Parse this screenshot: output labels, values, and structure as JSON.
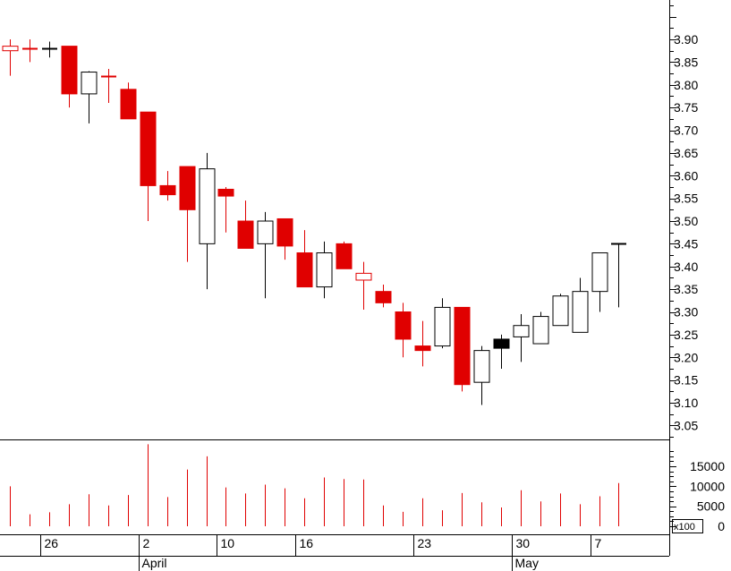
{
  "colors": {
    "up_body": "#ffffff",
    "up_outline": "#000000",
    "down_body": "#e00000",
    "special_body": "#000000",
    "volume_bar": "#e00000",
    "axis": "#000000",
    "background": "#ffffff"
  },
  "chart_data": {
    "type": "candlestick",
    "price_axis": {
      "ylim": [
        3.0,
        4.0
      ],
      "ticks": [
        "3.05",
        "3.10",
        "3.15",
        "3.20",
        "3.25",
        "3.30",
        "3.35",
        "3.40",
        "3.45",
        "3.50",
        "3.55",
        "3.60",
        "3.65",
        "3.70",
        "3.75",
        "3.80",
        "3.85",
        "3.90"
      ],
      "position": "right"
    },
    "volume_axis": {
      "ylim": [
        0,
        200
      ],
      "ticks": [
        "0",
        "5000",
        "10000",
        "15000"
      ],
      "multiplier_label": "x100"
    },
    "date_ticks": [
      "26",
      "2",
      "10",
      "16",
      "23",
      "30",
      "7"
    ],
    "month_labels": [
      "April",
      "May"
    ],
    "candles": [
      {
        "open": 3.885,
        "high": 3.9,
        "low": 3.82,
        "close": 3.875,
        "volume": 100,
        "kind": "down_hollow"
      },
      {
        "open": 3.88,
        "high": 3.9,
        "low": 3.85,
        "close": 3.88,
        "volume": 30,
        "kind": "doji_red"
      },
      {
        "open": 3.88,
        "high": 3.895,
        "low": 3.86,
        "close": 3.88,
        "volume": 35,
        "kind": "doji_black"
      },
      {
        "open": 3.885,
        "high": 3.885,
        "low": 3.75,
        "close": 3.78,
        "volume": 55,
        "kind": "down"
      },
      {
        "open": 3.78,
        "high": 3.83,
        "low": 3.715,
        "close": 3.828,
        "volume": 80,
        "kind": "up"
      },
      {
        "open": 3.825,
        "high": 3.835,
        "low": 3.76,
        "close": 3.82,
        "volume": 52,
        "kind": "doji_red"
      },
      {
        "open": 3.79,
        "high": 3.805,
        "low": 3.725,
        "close": 3.725,
        "volume": 78,
        "kind": "down"
      },
      {
        "open": 3.74,
        "high": 3.74,
        "low": 3.5,
        "close": 3.578,
        "volume": 205,
        "kind": "down"
      },
      {
        "open": 3.578,
        "high": 3.61,
        "low": 3.545,
        "close": 3.558,
        "volume": 73,
        "kind": "down"
      },
      {
        "open": 3.62,
        "high": 3.62,
        "low": 3.41,
        "close": 3.525,
        "volume": 142,
        "kind": "down"
      },
      {
        "open": 3.45,
        "high": 3.65,
        "low": 3.35,
        "close": 3.615,
        "volume": 175,
        "kind": "up"
      },
      {
        "open": 3.57,
        "high": 3.575,
        "low": 3.475,
        "close": 3.555,
        "volume": 97,
        "kind": "down"
      },
      {
        "open": 3.5,
        "high": 3.545,
        "low": 3.44,
        "close": 3.44,
        "volume": 82,
        "kind": "down"
      },
      {
        "open": 3.45,
        "high": 3.52,
        "low": 3.33,
        "close": 3.5,
        "volume": 104,
        "kind": "up"
      },
      {
        "open": 3.505,
        "high": 3.505,
        "low": 3.415,
        "close": 3.445,
        "volume": 95,
        "kind": "down"
      },
      {
        "open": 3.43,
        "high": 3.48,
        "low": 3.355,
        "close": 3.355,
        "volume": 70,
        "kind": "down"
      },
      {
        "open": 3.355,
        "high": 3.455,
        "low": 3.33,
        "close": 3.43,
        "volume": 122,
        "kind": "up"
      },
      {
        "open": 3.45,
        "high": 3.455,
        "low": 3.395,
        "close": 3.395,
        "volume": 118,
        "kind": "down"
      },
      {
        "open": 3.385,
        "high": 3.41,
        "low": 3.305,
        "close": 3.37,
        "volume": 117,
        "kind": "down_hollow"
      },
      {
        "open": 3.345,
        "high": 3.36,
        "low": 3.31,
        "close": 3.32,
        "volume": 52,
        "kind": "down"
      },
      {
        "open": 3.3,
        "high": 3.32,
        "low": 3.2,
        "close": 3.24,
        "volume": 36,
        "kind": "down"
      },
      {
        "open": 3.225,
        "high": 3.28,
        "low": 3.18,
        "close": 3.215,
        "volume": 70,
        "kind": "down"
      },
      {
        "open": 3.225,
        "high": 3.33,
        "low": 3.22,
        "close": 3.31,
        "volume": 40,
        "kind": "up"
      },
      {
        "open": 3.31,
        "high": 3.31,
        "low": 3.125,
        "close": 3.14,
        "volume": 83,
        "kind": "down"
      },
      {
        "open": 3.145,
        "high": 3.225,
        "low": 3.095,
        "close": 3.215,
        "volume": 60,
        "kind": "up"
      },
      {
        "open": 3.22,
        "high": 3.25,
        "low": 3.175,
        "close": 3.24,
        "volume": 47,
        "kind": "up_black"
      },
      {
        "open": 3.245,
        "high": 3.295,
        "low": 3.19,
        "close": 3.27,
        "volume": 90,
        "kind": "up"
      },
      {
        "open": 3.23,
        "high": 3.3,
        "low": 3.23,
        "close": 3.29,
        "volume": 62,
        "kind": "up"
      },
      {
        "open": 3.27,
        "high": 3.34,
        "low": 3.27,
        "close": 3.335,
        "volume": 82,
        "kind": "up"
      },
      {
        "open": 3.255,
        "high": 3.375,
        "low": 3.255,
        "close": 3.345,
        "volume": 55,
        "kind": "up"
      },
      {
        "open": 3.345,
        "high": 3.43,
        "low": 3.3,
        "close": 3.43,
        "volume": 75,
        "kind": "up"
      },
      {
        "open": 3.45,
        "high": 3.45,
        "low": 3.31,
        "close": 3.45,
        "volume": 108,
        "kind": "doji_black"
      }
    ]
  }
}
